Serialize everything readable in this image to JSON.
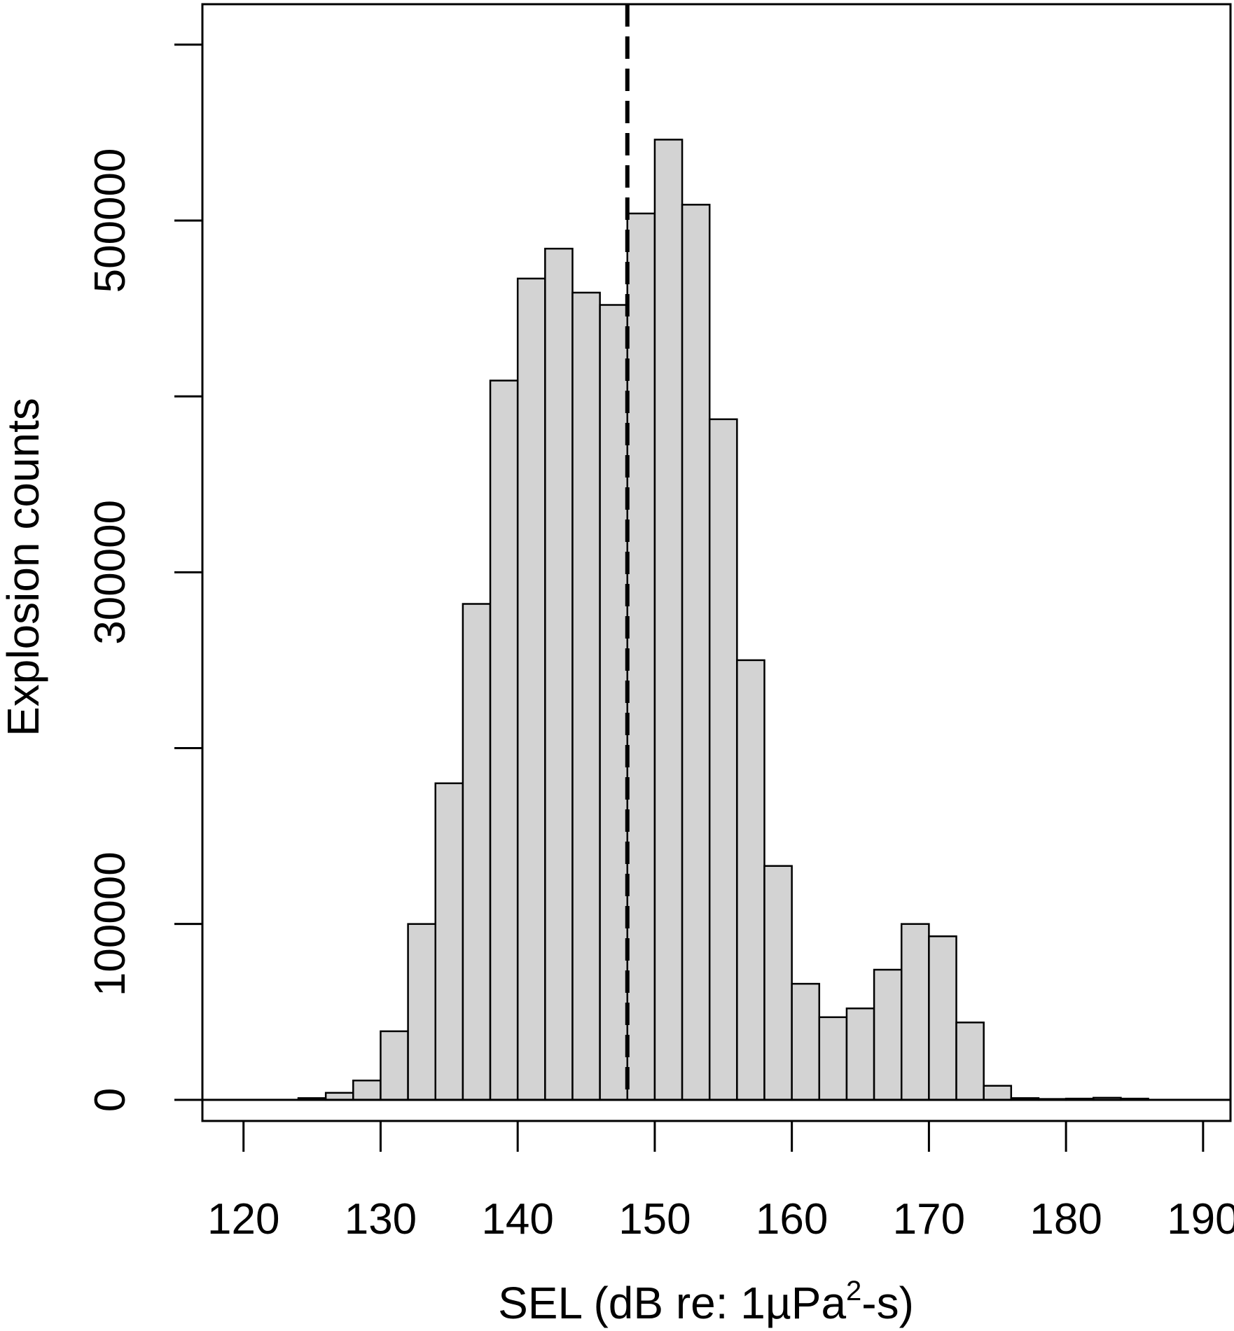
{
  "chart_data": {
    "type": "bar",
    "subtype": "histogram",
    "xlabel_parts": [
      "SEL (dB re: 1µPa",
      "2",
      "-s)"
    ],
    "ylabel": "Explosion counts",
    "xlim": [
      117,
      192
    ],
    "ylim": [
      -12000,
      623000
    ],
    "x_ticks": [
      120,
      130,
      140,
      150,
      160,
      170,
      180,
      190
    ],
    "x_tick_labels": [
      "120",
      "130",
      "140",
      "150",
      "160",
      "170",
      "180",
      "190"
    ],
    "y_ticks": [
      0,
      100000,
      300000,
      500000
    ],
    "y_tick_labels": [
      "0",
      "100000",
      "300000",
      "500000"
    ],
    "y_minor_ticks": [
      200000,
      400000,
      600000
    ],
    "bin_width": 2,
    "bins": [
      {
        "x0": 124,
        "x1": 126,
        "count": 1000
      },
      {
        "x0": 126,
        "x1": 128,
        "count": 4000
      },
      {
        "x0": 128,
        "x1": 130,
        "count": 11000
      },
      {
        "x0": 130,
        "x1": 132,
        "count": 39000
      },
      {
        "x0": 132,
        "x1": 134,
        "count": 100000
      },
      {
        "x0": 134,
        "x1": 136,
        "count": 180000
      },
      {
        "x0": 136,
        "x1": 138,
        "count": 282000
      },
      {
        "x0": 138,
        "x1": 140,
        "count": 409000
      },
      {
        "x0": 140,
        "x1": 142,
        "count": 467000
      },
      {
        "x0": 142,
        "x1": 144,
        "count": 484000
      },
      {
        "x0": 144,
        "x1": 146,
        "count": 459000
      },
      {
        "x0": 146,
        "x1": 148,
        "count": 452000
      },
      {
        "x0": 148,
        "x1": 150,
        "count": 504000
      },
      {
        "x0": 150,
        "x1": 152,
        "count": 546000
      },
      {
        "x0": 152,
        "x1": 154,
        "count": 509000
      },
      {
        "x0": 154,
        "x1": 156,
        "count": 387000
      },
      {
        "x0": 156,
        "x1": 158,
        "count": 250000
      },
      {
        "x0": 158,
        "x1": 160,
        "count": 133000
      },
      {
        "x0": 160,
        "x1": 162,
        "count": 66000
      },
      {
        "x0": 162,
        "x1": 164,
        "count": 47000
      },
      {
        "x0": 164,
        "x1": 166,
        "count": 52000
      },
      {
        "x0": 166,
        "x1": 168,
        "count": 74000
      },
      {
        "x0": 168,
        "x1": 170,
        "count": 100000
      },
      {
        "x0": 170,
        "x1": 172,
        "count": 93000
      },
      {
        "x0": 172,
        "x1": 174,
        "count": 44000
      },
      {
        "x0": 174,
        "x1": 176,
        "count": 8000
      },
      {
        "x0": 176,
        "x1": 178,
        "count": 1000
      },
      {
        "x0": 178,
        "x1": 180,
        "count": 500
      },
      {
        "x0": 180,
        "x1": 182,
        "count": 700
      },
      {
        "x0": 182,
        "x1": 184,
        "count": 1200
      },
      {
        "x0": 184,
        "x1": 186,
        "count": 700
      }
    ],
    "vertical_line": {
      "x": 148,
      "style": "dashed"
    },
    "bar_color": "#d3d3d3",
    "edge_color": "#000000",
    "grid": false,
    "legend": "none"
  }
}
